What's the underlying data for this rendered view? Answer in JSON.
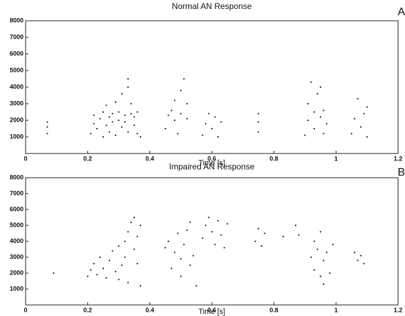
{
  "chart_data": [
    {
      "type": "scatter",
      "title": "Normal AN Response",
      "x_label": "Time [s]",
      "panel_label": "A",
      "color": "#222222",
      "xlim": [
        0,
        1.2
      ],
      "ylim": [
        0,
        8000
      ],
      "xticks": [
        0,
        0.2,
        0.4,
        0.6,
        0.8,
        1,
        1.2
      ],
      "yticks": [
        1000,
        2000,
        3000,
        4000,
        5000,
        6000,
        7000,
        8000
      ],
      "x": [
        0.07,
        0.07,
        0.07,
        0.21,
        0.22,
        0.22,
        0.23,
        0.24,
        0.25,
        0.25,
        0.26,
        0.26,
        0.27,
        0.27,
        0.28,
        0.28,
        0.29,
        0.29,
        0.3,
        0.3,
        0.31,
        0.31,
        0.32,
        0.32,
        0.33,
        0.33,
        0.34,
        0.34,
        0.35,
        0.35,
        0.36,
        0.36,
        0.37,
        0.33,
        0.45,
        0.46,
        0.47,
        0.48,
        0.48,
        0.49,
        0.5,
        0.5,
        0.51,
        0.52,
        0.52,
        0.57,
        0.58,
        0.59,
        0.6,
        0.61,
        0.62,
        0.63,
        0.75,
        0.75,
        0.75,
        0.9,
        0.91,
        0.91,
        0.92,
        0.93,
        0.93,
        0.94,
        0.95,
        0.96,
        0.96,
        0.97,
        0.95,
        1.05,
        1.06,
        1.07,
        1.08,
        1.09,
        1.1,
        1.1
      ],
      "values": [
        1200,
        1600,
        1900,
        1200,
        1800,
        2300,
        1500,
        2100,
        1000,
        2500,
        1700,
        2900,
        1300,
        2200,
        2400,
        1900,
        3100,
        1100,
        2000,
        2500,
        1600,
        3600,
        2300,
        1900,
        4000,
        1300,
        2400,
        3000,
        1700,
        2200,
        1200,
        2500,
        1000,
        4500,
        1500,
        2300,
        2600,
        3200,
        2000,
        1200,
        2400,
        3800,
        4500,
        2100,
        3000,
        1100,
        1800,
        2400,
        1500,
        2200,
        1000,
        1900,
        1300,
        1900,
        2400,
        1100,
        2000,
        3000,
        4300,
        2500,
        1500,
        3600,
        2200,
        2600,
        1200,
        1800,
        4000,
        1200,
        2100,
        3300,
        1600,
        2400,
        2800,
        1000
      ]
    },
    {
      "type": "scatter",
      "title": "Impaired AN Response",
      "x_label": "Time [s]",
      "panel_label": "B",
      "color": "#222222",
      "xlim": [
        0,
        1.2
      ],
      "ylim": [
        0,
        8000
      ],
      "xticks": [
        0,
        0.2,
        0.4,
        0.6,
        0.8,
        1,
        1.2
      ],
      "yticks": [
        1000,
        2000,
        3000,
        4000,
        5000,
        6000,
        7000,
        8000
      ],
      "x": [
        0.09,
        0.2,
        0.21,
        0.22,
        0.23,
        0.24,
        0.25,
        0.26,
        0.27,
        0.28,
        0.29,
        0.3,
        0.3,
        0.31,
        0.32,
        0.32,
        0.33,
        0.33,
        0.34,
        0.35,
        0.35,
        0.36,
        0.36,
        0.37,
        0.37,
        0.45,
        0.46,
        0.47,
        0.48,
        0.49,
        0.5,
        0.5,
        0.51,
        0.52,
        0.53,
        0.53,
        0.54,
        0.55,
        0.57,
        0.58,
        0.59,
        0.6,
        0.61,
        0.62,
        0.63,
        0.64,
        0.65,
        0.74,
        0.75,
        0.76,
        0.77,
        0.83,
        0.87,
        0.88,
        0.92,
        0.93,
        0.93,
        0.94,
        0.95,
        0.95,
        0.96,
        0.97,
        0.98,
        0.99,
        0.96,
        1.06,
        1.07,
        1.08,
        1.09
      ],
      "values": [
        2000,
        1800,
        2200,
        2600,
        1900,
        3000,
        2300,
        1700,
        2800,
        3400,
        2100,
        3700,
        1600,
        2500,
        4000,
        3000,
        1400,
        4600,
        5200,
        3500,
        5500,
        4300,
        2600,
        5000,
        1200,
        3600,
        4000,
        2300,
        3300,
        4500,
        1800,
        2900,
        3800,
        4700,
        2500,
        5200,
        3100,
        1200,
        4200,
        5000,
        5500,
        4600,
        3800,
        5300,
        4400,
        3600,
        5100,
        4000,
        4800,
        3700,
        4500,
        4300,
        5000,
        4400,
        3000,
        2200,
        4000,
        3500,
        1800,
        4600,
        2800,
        3300,
        2000,
        3800,
        1300,
        3300,
        2800,
        3100,
        2600
      ]
    }
  ]
}
